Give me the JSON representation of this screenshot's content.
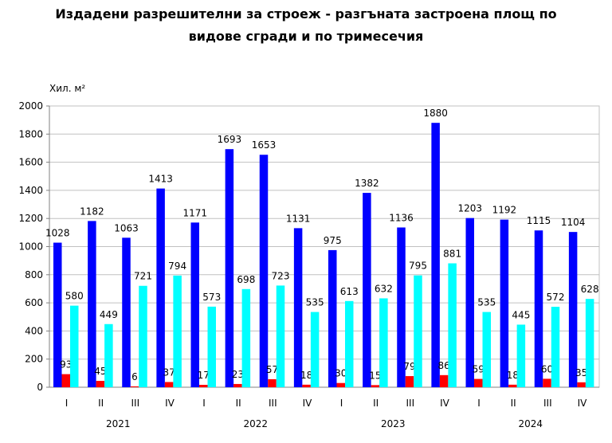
{
  "chart_data": {
    "type": "bar",
    "title_line1": "Издадени разрешителни за строеж - разгъната застроена площ по",
    "title_line2": "видове сгради и по тримесечия",
    "ylabel": "Хил. м²",
    "ylim": [
      0,
      2000
    ],
    "yticks": [
      "0",
      "200",
      "400",
      "600",
      "800",
      "1000",
      "1200",
      "1400",
      "1600",
      "1800",
      "2000"
    ],
    "grid": true,
    "legend": "none",
    "years": [
      "2021",
      "2022",
      "2023",
      "2024"
    ],
    "categories": [
      "I",
      "II",
      "III",
      "IV",
      "I",
      "II",
      "III",
      "IV",
      "I",
      "II",
      "III",
      "IV",
      "I",
      "II",
      "III",
      "IV"
    ],
    "series": [
      {
        "name": "series-1",
        "color": "#0000ff",
        "values": [
          1028,
          1182,
          1063,
          1413,
          1171,
          1693,
          1653,
          1131,
          975,
          1382,
          1136,
          1880,
          1203,
          1192,
          1115,
          1104
        ]
      },
      {
        "name": "series-2",
        "color": "#ff0000",
        "values": [
          93,
          45,
          6,
          37,
          17,
          23,
          57,
          18,
          30,
          15,
          79,
          86,
          59,
          18,
          60,
          35
        ]
      },
      {
        "name": "series-3",
        "color": "#00ffff",
        "values": [
          580,
          449,
          721,
          794,
          573,
          698,
          723,
          535,
          613,
          632,
          795,
          881,
          535,
          445,
          572,
          628
        ]
      }
    ]
  }
}
